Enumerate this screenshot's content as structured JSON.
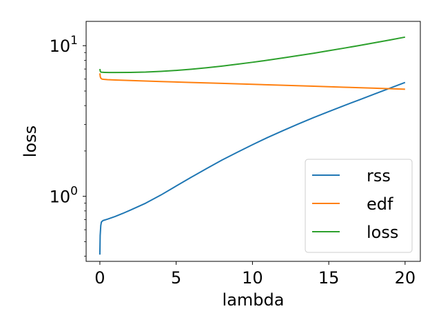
{
  "chart_data": {
    "type": "line",
    "xlabel": "lambda",
    "ylabel": "loss",
    "xlim": [
      -0.9,
      21
    ],
    "ylim": [
      0.37,
      14.5
    ],
    "yscale": "log",
    "grid": false,
    "legend_position": "lower right",
    "x_ticks": [
      0,
      5,
      10,
      15,
      20
    ],
    "x_tick_labels": [
      "0",
      "5",
      "10",
      "15",
      "20"
    ],
    "y_major_ticks": [
      1,
      10
    ],
    "y_tick_labels": [
      {
        "base": "10",
        "exp": "0"
      },
      {
        "base": "10",
        "exp": "1"
      }
    ],
    "y_minor_ticks": [
      0.4,
      0.5,
      0.6,
      0.7,
      0.8,
      0.9,
      2,
      3,
      4,
      5,
      6,
      7,
      8,
      9
    ],
    "series": [
      {
        "name": "rss",
        "color": "#1f77b4",
        "x": [
          0,
          0.02,
          0.06,
          0.1,
          0.2,
          0.5,
          1,
          1.5,
          2,
          3,
          4,
          5,
          6,
          7,
          8,
          9,
          10,
          11,
          12,
          13,
          14,
          15,
          16,
          17,
          18,
          19,
          20
        ],
        "y": [
          0.41,
          0.55,
          0.64,
          0.675,
          0.69,
          0.705,
          0.735,
          0.77,
          0.81,
          0.9,
          1.02,
          1.17,
          1.34,
          1.53,
          1.74,
          1.96,
          2.2,
          2.46,
          2.73,
          3.02,
          3.33,
          3.65,
          4.0,
          4.37,
          4.78,
          5.22,
          5.7
        ]
      },
      {
        "name": "edf",
        "color": "#ff7f0e",
        "x": [
          0,
          0.03,
          0.08,
          0.15,
          0.3,
          0.5,
          1,
          2,
          4,
          6,
          8,
          10,
          12,
          14,
          16,
          18,
          20
        ],
        "y": [
          6.55,
          6.2,
          6.05,
          6.0,
          5.97,
          5.95,
          5.92,
          5.87,
          5.78,
          5.7,
          5.62,
          5.54,
          5.46,
          5.38,
          5.3,
          5.22,
          5.14
        ]
      },
      {
        "name": "loss",
        "color": "#2ca02c",
        "x": [
          0,
          0.03,
          0.08,
          0.15,
          0.3,
          0.6,
          1,
          2,
          3,
          4,
          5,
          6,
          7,
          8,
          9,
          10,
          11,
          12,
          13,
          14,
          15,
          16,
          17,
          18,
          19,
          20
        ],
        "y": [
          7.0,
          6.75,
          6.67,
          6.66,
          6.65,
          6.64,
          6.64,
          6.65,
          6.68,
          6.75,
          6.85,
          6.98,
          7.14,
          7.32,
          7.53,
          7.76,
          8.01,
          8.29,
          8.59,
          8.91,
          9.26,
          9.63,
          10.03,
          10.46,
          10.91,
          11.4
        ]
      }
    ]
  }
}
